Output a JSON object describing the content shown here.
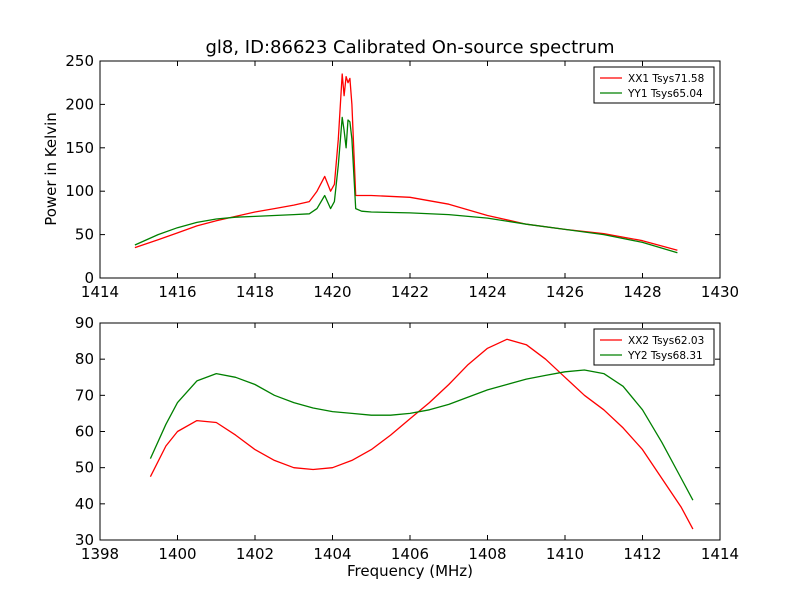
{
  "chart_data": [
    {
      "type": "line",
      "title": "gl8, ID:86623 Calibrated On-source spectrum",
      "xlabel": "",
      "ylabel": "Power in Kelvin",
      "xlim": [
        1414,
        1430
      ],
      "ylim": [
        0,
        250
      ],
      "xticks": [
        "1414",
        "1416",
        "1418",
        "1420",
        "1422",
        "1424",
        "1426",
        "1428",
        "1430"
      ],
      "yticks": [
        "0",
        "50",
        "100",
        "150",
        "200",
        "250"
      ],
      "legend_position": "top-right",
      "grid": false,
      "series": [
        {
          "name": "XX1 Tsys71.58",
          "color": "#ff0000",
          "x": [
            1414.9,
            1415.5,
            1416.0,
            1416.5,
            1417.0,
            1417.5,
            1418.0,
            1418.5,
            1419.0,
            1419.4,
            1419.6,
            1419.8,
            1419.95,
            1420.05,
            1420.15,
            1420.25,
            1420.3,
            1420.35,
            1420.4,
            1420.45,
            1420.5,
            1420.6,
            1420.75,
            1421.0,
            1422.0,
            1423.0,
            1424.0,
            1425.0,
            1426.0,
            1427.0,
            1428.0,
            1428.9
          ],
          "y": [
            35,
            44,
            52,
            60,
            66,
            71,
            76,
            80,
            84,
            88,
            100,
            117,
            100,
            108,
            160,
            235,
            210,
            232,
            225,
            230,
            200,
            95,
            95,
            95,
            93,
            85,
            72,
            62,
            56,
            51,
            43,
            32
          ]
        },
        {
          "name": "YY1 Tsys65.04",
          "color": "#008000",
          "x": [
            1414.9,
            1415.5,
            1416.0,
            1416.5,
            1417.0,
            1417.5,
            1418.0,
            1418.5,
            1419.0,
            1419.4,
            1419.6,
            1419.8,
            1419.95,
            1420.05,
            1420.15,
            1420.25,
            1420.3,
            1420.35,
            1420.4,
            1420.45,
            1420.5,
            1420.6,
            1420.75,
            1421.0,
            1422.0,
            1423.0,
            1424.0,
            1425.0,
            1426.0,
            1427.0,
            1428.0,
            1428.9
          ],
          "y": [
            38,
            50,
            58,
            64,
            68,
            70,
            71,
            72,
            73,
            74,
            80,
            95,
            80,
            88,
            130,
            185,
            170,
            150,
            182,
            180,
            160,
            80,
            77,
            76,
            75,
            73,
            69,
            62,
            56,
            50,
            41,
            29
          ]
        }
      ]
    },
    {
      "type": "line",
      "title": "",
      "xlabel": "Frequency (MHz)",
      "ylabel": "",
      "xlim": [
        1398,
        1414
      ],
      "ylim": [
        30,
        90
      ],
      "xticks": [
        "1398",
        "1400",
        "1402",
        "1404",
        "1406",
        "1408",
        "1410",
        "1412",
        "1414"
      ],
      "yticks": [
        "30",
        "40",
        "50",
        "60",
        "70",
        "80",
        "90"
      ],
      "legend_position": "top-right",
      "grid": false,
      "series": [
        {
          "name": "XX2 Tsys62.03",
          "color": "#ff0000",
          "x": [
            1399.3,
            1399.7,
            1400.0,
            1400.5,
            1401.0,
            1401.5,
            1402.0,
            1402.5,
            1403.0,
            1403.5,
            1404.0,
            1404.5,
            1405.0,
            1405.5,
            1406.0,
            1406.5,
            1407.0,
            1407.5,
            1408.0,
            1408.5,
            1409.0,
            1409.5,
            1410.0,
            1410.5,
            1411.0,
            1411.5,
            1412.0,
            1412.5,
            1413.0,
            1413.3
          ],
          "y": [
            47.5,
            56,
            60,
            63,
            62.5,
            59,
            55,
            52,
            50,
            49.5,
            50,
            52,
            55,
            59,
            63.5,
            68,
            73,
            78.5,
            83,
            85.5,
            84,
            80,
            75,
            70,
            66,
            61,
            55,
            47,
            39,
            33
          ]
        },
        {
          "name": "YY2 Tsys68.31",
          "color": "#008000",
          "x": [
            1399.3,
            1399.7,
            1400.0,
            1400.5,
            1401.0,
            1401.5,
            1402.0,
            1402.5,
            1403.0,
            1403.5,
            1404.0,
            1404.5,
            1405.0,
            1405.5,
            1406.0,
            1406.5,
            1407.0,
            1407.5,
            1408.0,
            1408.5,
            1409.0,
            1409.5,
            1410.0,
            1410.5,
            1411.0,
            1411.5,
            1412.0,
            1412.5,
            1413.0,
            1413.3
          ],
          "y": [
            52.5,
            62,
            68,
            74,
            76,
            75,
            73,
            70,
            68,
            66.5,
            65.5,
            65,
            64.5,
            64.5,
            65,
            66,
            67.5,
            69.5,
            71.5,
            73,
            74.5,
            75.5,
            76.5,
            77,
            76,
            72.5,
            66,
            57,
            47,
            41
          ]
        }
      ]
    }
  ]
}
